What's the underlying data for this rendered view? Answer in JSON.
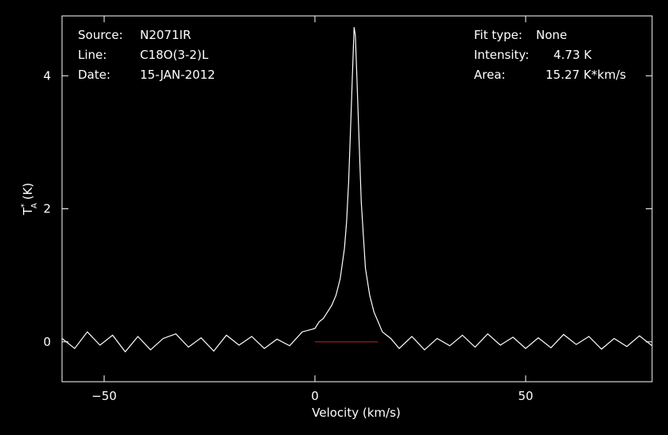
{
  "chart_data": {
    "type": "line",
    "title": "",
    "xlabel": "Velocity (km/s)",
    "ylabel_main": "T",
    "ylabel_sup": "*",
    "ylabel_sub": "A",
    "ylabel_unit": "(K)",
    "xlim": [
      -60,
      80
    ],
    "ylim": [
      -0.6,
      4.9
    ],
    "xticks": [
      -50,
      0,
      50
    ],
    "xtick_labels": [
      "−50",
      "0",
      "50"
    ],
    "yticks": [
      0,
      2,
      4
    ],
    "ytick_labels": [
      "0",
      "2",
      "4"
    ],
    "grid": false,
    "legend": "none",
    "colors": {
      "background": "#000000",
      "spectrum": "#ffffff",
      "baseline": "#cc2222",
      "axes": "#ffffff"
    },
    "baseline": {
      "y": 0,
      "x_range": [
        0,
        15
      ]
    },
    "series": [
      {
        "x": [
          -60,
          -57,
          -54,
          -51,
          -48,
          -45,
          -42,
          -39,
          -36,
          -33,
          -30,
          -27,
          -24,
          -21,
          -18,
          -15,
          -12,
          -9,
          -6,
          -3,
          0,
          1,
          2,
          3,
          4,
          5,
          6,
          7,
          7.5,
          8,
          8.5,
          9,
          9.3,
          9.6,
          10,
          10.5,
          11,
          11.5,
          12,
          13,
          14,
          15,
          16,
          17,
          18,
          20,
          23,
          26,
          29,
          32,
          35,
          38,
          41,
          44,
          47,
          50,
          53,
          56,
          59,
          62,
          65,
          68,
          71,
          74,
          77,
          80
        ],
        "values": [
          0.05,
          -0.1,
          0.15,
          -0.05,
          0.1,
          -0.15,
          0.08,
          -0.12,
          0.05,
          0.12,
          -0.08,
          0.06,
          -0.14,
          0.1,
          -0.05,
          0.08,
          -0.1,
          0.04,
          -0.06,
          0.15,
          0.2,
          0.3,
          0.35,
          0.45,
          0.55,
          0.7,
          0.95,
          1.4,
          1.8,
          2.4,
          3.3,
          4.2,
          4.73,
          4.6,
          3.9,
          3.0,
          2.1,
          1.6,
          1.1,
          0.7,
          0.45,
          0.3,
          0.15,
          0.1,
          0.05,
          -0.1,
          0.08,
          -0.12,
          0.05,
          -0.06,
          0.1,
          -0.08,
          0.12,
          -0.05,
          0.07,
          -0.1,
          0.06,
          -0.09,
          0.11,
          -0.04,
          0.08,
          -0.11,
          0.05,
          -0.07,
          0.09,
          -0.06
        ]
      }
    ]
  },
  "header": {
    "source_label": "Source:",
    "source_value": "N2071IR",
    "line_label": "Line:",
    "line_value": "C18O(3-2)L",
    "date_label": "Date:",
    "date_value": "15-JAN-2012",
    "fit_label": "Fit type:",
    "fit_value": "None",
    "intensity_label": "Intensity:",
    "intensity_value": "4.73 K",
    "area_label": "Area:",
    "area_value": "15.27 K*km/s"
  }
}
